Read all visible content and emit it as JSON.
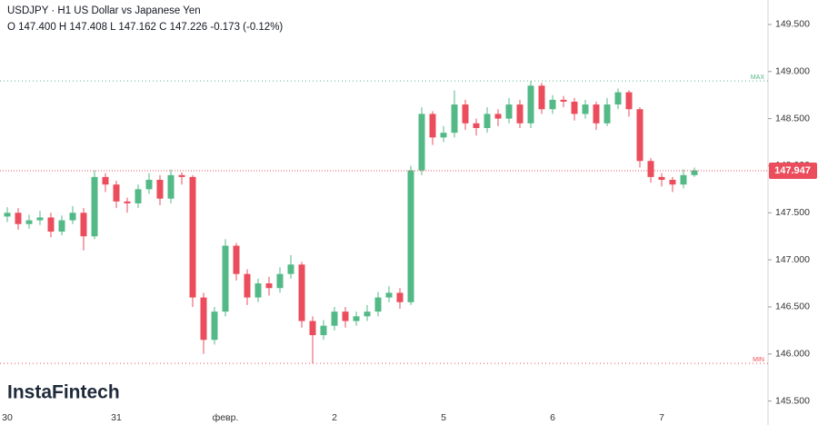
{
  "chart_data": {
    "type": "candlestick",
    "title": "USDJPY · H1 US Dollar vs Japanese Yen",
    "subtitle": "O 147.400 H 147.408 L 147.162 C 147.226 -0.173 (-0.12%)",
    "watermark": "InstaFintech",
    "categories": [
      "30",
      null,
      null,
      null,
      null,
      null,
      null,
      null,
      null,
      null,
      "31",
      null,
      null,
      null,
      null,
      null,
      null,
      null,
      null,
      null,
      "февр.",
      null,
      null,
      null,
      null,
      null,
      null,
      null,
      null,
      null,
      "2",
      null,
      null,
      null,
      null,
      null,
      null,
      null,
      null,
      null,
      "5",
      null,
      null,
      null,
      null,
      null,
      null,
      null,
      null,
      null,
      "6",
      null,
      null,
      null,
      null,
      null,
      null,
      null,
      null,
      null,
      "7",
      null,
      null,
      null
    ],
    "open": [
      147.46,
      147.5,
      147.38,
      147.42,
      147.45,
      147.3,
      147.42,
      147.5,
      147.25,
      147.88,
      147.8,
      147.62,
      147.6,
      147.75,
      147.85,
      147.65,
      147.9,
      147.88,
      146.6,
      146.15,
      146.45,
      147.15,
      146.85,
      146.6,
      146.75,
      146.7,
      146.85,
      146.95,
      146.35,
      146.2,
      146.3,
      146.45,
      146.35,
      146.4,
      146.45,
      146.6,
      146.65,
      146.55,
      147.95,
      148.55,
      148.3,
      148.35,
      148.65,
      148.45,
      148.4,
      148.55,
      148.5,
      148.65,
      148.45,
      148.85,
      148.6,
      148.7,
      148.68,
      148.55,
      148.65,
      148.45,
      148.65,
      148.78,
      148.6,
      148.05,
      147.88,
      147.85,
      147.8,
      147.9
    ],
    "high": [
      147.56,
      147.55,
      147.48,
      147.52,
      147.5,
      147.47,
      147.57,
      147.55,
      147.95,
      147.92,
      147.84,
      147.66,
      147.8,
      147.92,
      147.9,
      147.96,
      147.93,
      147.9,
      146.65,
      146.5,
      147.22,
      147.18,
      146.9,
      146.8,
      146.82,
      146.92,
      147.05,
      146.98,
      146.4,
      146.36,
      146.5,
      146.5,
      146.45,
      146.52,
      146.66,
      146.72,
      146.7,
      148.0,
      148.62,
      148.58,
      148.42,
      148.8,
      148.7,
      148.5,
      148.62,
      148.6,
      148.72,
      148.7,
      148.9,
      148.88,
      148.75,
      148.74,
      148.72,
      148.7,
      148.68,
      148.72,
      148.82,
      148.8,
      148.62,
      148.08,
      147.92,
      147.88,
      147.96,
      147.98
    ],
    "low": [
      147.4,
      147.32,
      147.33,
      147.37,
      147.24,
      147.26,
      147.38,
      147.1,
      147.22,
      147.72,
      147.55,
      147.5,
      147.55,
      147.7,
      147.58,
      147.6,
      147.8,
      146.5,
      146.0,
      146.1,
      146.4,
      146.78,
      146.52,
      146.55,
      146.62,
      146.65,
      146.8,
      146.28,
      145.9,
      146.15,
      146.25,
      146.28,
      146.3,
      146.35,
      146.4,
      146.55,
      146.48,
      146.52,
      147.9,
      148.22,
      148.25,
      148.3,
      148.38,
      148.32,
      148.35,
      148.42,
      148.45,
      148.4,
      148.4,
      148.55,
      148.55,
      148.62,
      148.48,
      148.5,
      148.38,
      148.42,
      148.6,
      148.52,
      147.98,
      147.82,
      147.78,
      147.72,
      147.76,
      147.88
    ],
    "close": [
      147.5,
      147.38,
      147.42,
      147.45,
      147.3,
      147.42,
      147.5,
      147.25,
      147.88,
      147.8,
      147.62,
      147.6,
      147.75,
      147.85,
      147.65,
      147.9,
      147.88,
      146.6,
      146.15,
      146.45,
      147.15,
      146.85,
      146.6,
      146.75,
      146.7,
      146.85,
      146.95,
      146.35,
      146.2,
      146.3,
      146.45,
      146.35,
      146.4,
      146.45,
      146.6,
      146.65,
      146.55,
      147.95,
      148.55,
      148.3,
      148.35,
      148.65,
      148.45,
      148.4,
      148.55,
      148.5,
      148.65,
      148.45,
      148.85,
      148.6,
      148.7,
      148.68,
      148.55,
      148.65,
      148.45,
      148.65,
      148.78,
      148.6,
      148.05,
      147.88,
      147.85,
      147.8,
      147.9,
      147.95
    ],
    "up_color": "#53b987",
    "down_color": "#eb4d5c",
    "ylim": [
      145.4,
      149.76
    ],
    "yticks": [
      {
        "value": 145.5,
        "label": "145.500"
      },
      {
        "value": 146,
        "label": "146.000"
      },
      {
        "value": 146.5,
        "label": "146.500"
      },
      {
        "value": 147,
        "label": "147.000"
      },
      {
        "value": 147.5,
        "label": "147.500"
      },
      {
        "value": 148,
        "label": "148.000"
      },
      {
        "value": 148.5,
        "label": "148.500"
      },
      {
        "value": 149,
        "label": "149.000"
      },
      {
        "value": 149.5,
        "label": "149.500"
      }
    ],
    "levels": [
      {
        "label": "MAX",
        "value": 148.9,
        "color": "#53b987"
      },
      {
        "label": "MIN",
        "value": 145.9,
        "color": "#eb4d5c"
      }
    ],
    "last_price": 147.947,
    "last_price_color": "#eb4d5c"
  }
}
